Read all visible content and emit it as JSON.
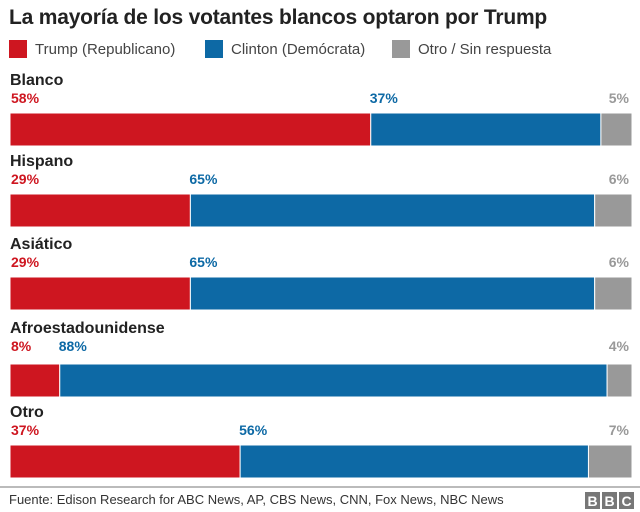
{
  "chart_data": {
    "type": "bar",
    "orientation": "horizontal-stacked-100",
    "title": "La mayoría de los votantes blancos optaron por Trump",
    "categories": [
      "Blanco",
      "Hispano",
      "Asiático",
      "Afroestadounidense",
      "Otro"
    ],
    "series": [
      {
        "name": "Trump (Republicano)",
        "color": "#ce1620",
        "values": [
          58,
          29,
          29,
          8,
          37
        ]
      },
      {
        "name": "Clinton (Demócrata)",
        "color": "#0d69a5",
        "values": [
          37,
          65,
          65,
          88,
          56
        ]
      },
      {
        "name": "Otro / Sin respuesta",
        "color": "#999999",
        "values": [
          5,
          6,
          6,
          4,
          7
        ]
      }
    ],
    "unit": "%",
    "xlim": [
      0,
      100
    ],
    "grid": false,
    "legend": "top"
  },
  "footer": {
    "source": "Fuente: Edison Research for ABC News, AP, CBS News, CNN, Fox News, NBC News",
    "logo": "BBC"
  }
}
